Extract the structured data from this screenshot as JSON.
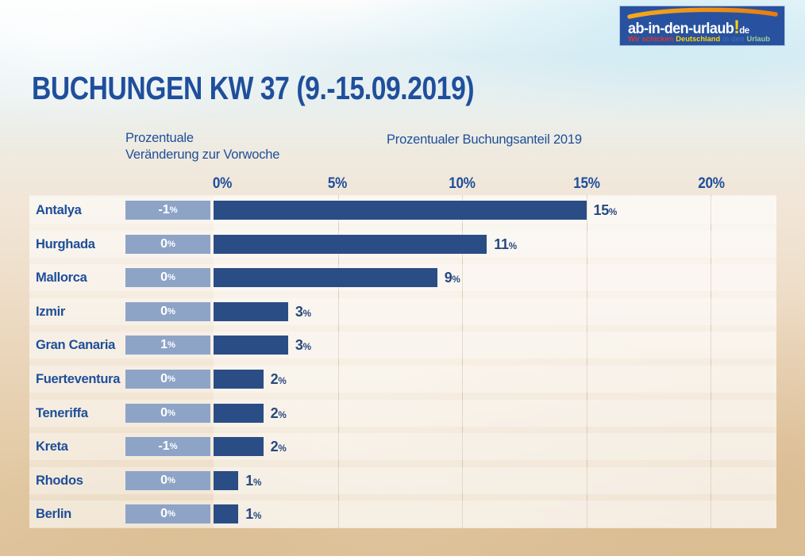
{
  "logo": {
    "brand": "ab-in-den-urlaub",
    "exclamation": "!",
    "tld": "de",
    "background_color": "#2852a0",
    "swoosh_color": "#f08c1e",
    "tagline_parts": [
      {
        "text": "Wir schicken",
        "color": "#d6392b"
      },
      {
        "text": "Deutschland",
        "color": "#ffd400"
      },
      {
        "text": "in den",
        "color": "#3c66ae"
      },
      {
        "text": "Urlaub",
        "color": "#9ccf8f"
      }
    ]
  },
  "title": "BUCHUNGEN KW 37 (9.-15.09.2019)",
  "headers": {
    "left": "Prozentuale\nVeränderung zur Vorwoche",
    "right": "Prozentualer Buchungsanteil 2019"
  },
  "chart_data": {
    "type": "bar",
    "orientation": "horizontal",
    "title": "BUCHUNGEN KW 37 (9.-15.09.2019)",
    "categories": [
      "Antalya",
      "Hurghada",
      "Mallorca",
      "Izmir",
      "Gran Canaria",
      "Fuerteventura",
      "Teneriffa",
      "Kreta",
      "Rhodos",
      "Berlin"
    ],
    "series": [
      {
        "name": "Prozentuale Veränderung zur Vorwoche",
        "unit": "%",
        "values": [
          -1,
          0,
          0,
          0,
          1,
          0,
          0,
          -1,
          0,
          0
        ]
      },
      {
        "name": "Prozentualer Buchungsanteil 2019",
        "unit": "%",
        "values": [
          15,
          11,
          9,
          3,
          3,
          2,
          2,
          2,
          1,
          1
        ]
      }
    ],
    "x_ticks": [
      "0%",
      "5%",
      "10%",
      "15%",
      "20%"
    ],
    "x_tick_values": [
      0,
      5,
      10,
      15,
      20
    ],
    "xlim": [
      0,
      22.6
    ],
    "grid": true,
    "legend_position": "none",
    "bar_color": "#2b4d85",
    "change_box_color": "#8ea4c7",
    "label_text_color": "#1e4e99",
    "value_text_color": "#27497f"
  }
}
